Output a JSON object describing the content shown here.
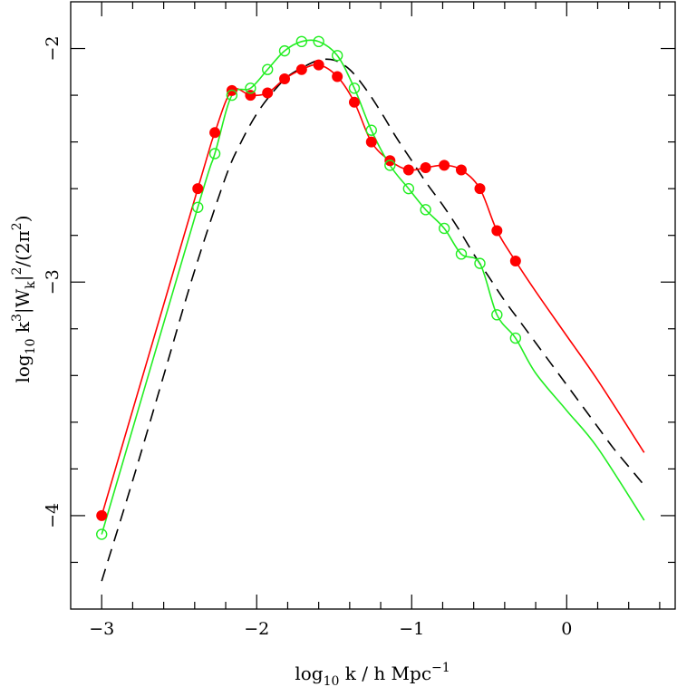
{
  "chart_data": {
    "type": "line",
    "xlabel": {
      "base": "log",
      "sub": "10",
      "rest": " k / h Mpc",
      "sup": "−1"
    },
    "ylabel": {
      "p1": "log",
      "sub1": "10",
      "p2": " k",
      "sup1": "3",
      "p3": "|W",
      "sub2": "k",
      "p4": "|",
      "sup2": "2",
      "p5": "/(2π",
      "sup3": "2",
      "p6": ")"
    },
    "xlim": [
      -3.2,
      0.7
    ],
    "ylim": [
      -4.4,
      -1.8
    ],
    "xticks": {
      "major": [
        -3,
        -2,
        -1,
        0
      ],
      "labels": [
        "−3",
        "−2",
        "−1",
        "0"
      ],
      "minor_step": 0.2
    },
    "yticks": {
      "major": [
        -4,
        -3,
        -2
      ],
      "labels": [
        "−4",
        "−3",
        "−2"
      ],
      "minor_step": 0.2
    },
    "series": [
      {
        "color": "#000000",
        "style": "dashed",
        "markers": "none",
        "x": [
          -3.0,
          -2.8,
          -2.6,
          -2.4,
          -2.2,
          -2.1,
          -2.0,
          -1.9,
          -1.8,
          -1.7,
          -1.6,
          -1.5,
          -1.4,
          -1.3,
          -1.2,
          -1.1,
          -1.0,
          -0.9,
          -0.8,
          -0.7,
          -0.6,
          -0.5,
          -0.4,
          -0.3,
          -0.2,
          -0.1,
          0.0,
          0.1,
          0.2,
          0.3,
          0.4,
          0.5
        ],
        "y": [
          -4.28,
          -3.85,
          -3.4,
          -2.95,
          -2.55,
          -2.4,
          -2.28,
          -2.19,
          -2.12,
          -2.08,
          -2.05,
          -2.05,
          -2.09,
          -2.17,
          -2.27,
          -2.38,
          -2.48,
          -2.58,
          -2.67,
          -2.77,
          -2.88,
          -2.98,
          -3.08,
          -3.17,
          -3.26,
          -3.35,
          -3.44,
          -3.53,
          -3.62,
          -3.71,
          -3.79,
          -3.87
        ]
      },
      {
        "color": "#ff0000",
        "style": "solid",
        "markers": "filled-circle",
        "x": [
          -3.0,
          -2.38,
          -2.27,
          -2.16,
          -2.04,
          -1.93,
          -1.82,
          -1.71,
          -1.6,
          -1.48,
          -1.37,
          -1.26,
          -1.14,
          -1.02,
          -0.91,
          -0.79,
          -0.68,
          -0.56,
          -0.45,
          -0.33
        ],
        "y": [
          -4.0,
          -2.6,
          -2.36,
          -2.18,
          -2.2,
          -2.19,
          -2.13,
          -2.09,
          -2.07,
          -2.12,
          -2.23,
          -2.4,
          -2.48,
          -2.52,
          -2.51,
          -2.5,
          -2.52,
          -2.6,
          -2.78,
          -2.91
        ],
        "tail_x": [
          -0.2,
          0.0,
          0.2,
          0.5
        ],
        "tail_y": [
          -3.04,
          -3.23,
          -3.42,
          -3.73
        ]
      },
      {
        "color": "#22ee22",
        "style": "solid",
        "markers": "open-circle",
        "x": [
          -3.0,
          -2.38,
          -2.27,
          -2.16,
          -2.04,
          -1.93,
          -1.82,
          -1.71,
          -1.6,
          -1.48,
          -1.37,
          -1.26,
          -1.14,
          -1.02,
          -0.91,
          -0.79,
          -0.68,
          -0.56,
          -0.45,
          -0.33
        ],
        "y": [
          -4.08,
          -2.68,
          -2.45,
          -2.2,
          -2.17,
          -2.09,
          -2.01,
          -1.97,
          -1.97,
          -2.03,
          -2.17,
          -2.35,
          -2.5,
          -2.6,
          -2.69,
          -2.77,
          -2.88,
          -2.92,
          -3.14,
          -3.24
        ],
        "tail_x": [
          -0.2,
          0.0,
          0.2,
          0.5
        ],
        "tail_y": [
          -3.39,
          -3.55,
          -3.71,
          -4.02
        ]
      }
    ]
  }
}
